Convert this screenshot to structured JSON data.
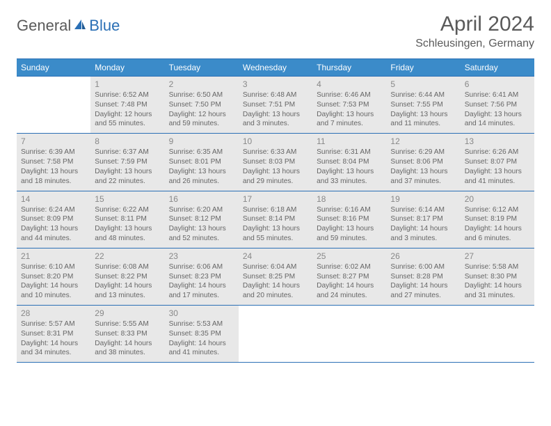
{
  "logo": {
    "textA": "General",
    "textB": "Blue"
  },
  "title": "April 2024",
  "location": "Schleusingen, Germany",
  "colors": {
    "header_bg": "#3b8bc9",
    "header_text": "#ffffff",
    "border": "#2a6fb5",
    "text": "#333333",
    "muted_bg": "#e8e8e8",
    "logo_gray": "#5a5a5a",
    "logo_blue": "#2a6fb5"
  },
  "day_headers": [
    "Sunday",
    "Monday",
    "Tuesday",
    "Wednesday",
    "Thursday",
    "Friday",
    "Saturday"
  ],
  "weeks": [
    [
      {
        "date": "",
        "sunrise": "",
        "sunset": "",
        "daylight": "",
        "other": false,
        "empty": true
      },
      {
        "date": "1",
        "sunrise": "6:52 AM",
        "sunset": "7:48 PM",
        "daylight": "12 hours and 55 minutes.",
        "other": true
      },
      {
        "date": "2",
        "sunrise": "6:50 AM",
        "sunset": "7:50 PM",
        "daylight": "12 hours and 59 minutes.",
        "other": true
      },
      {
        "date": "3",
        "sunrise": "6:48 AM",
        "sunset": "7:51 PM",
        "daylight": "13 hours and 3 minutes.",
        "other": true
      },
      {
        "date": "4",
        "sunrise": "6:46 AM",
        "sunset": "7:53 PM",
        "daylight": "13 hours and 7 minutes.",
        "other": true
      },
      {
        "date": "5",
        "sunrise": "6:44 AM",
        "sunset": "7:55 PM",
        "daylight": "13 hours and 11 minutes.",
        "other": true
      },
      {
        "date": "6",
        "sunrise": "6:41 AM",
        "sunset": "7:56 PM",
        "daylight": "13 hours and 14 minutes.",
        "other": true
      }
    ],
    [
      {
        "date": "7",
        "sunrise": "6:39 AM",
        "sunset": "7:58 PM",
        "daylight": "13 hours and 18 minutes.",
        "other": true
      },
      {
        "date": "8",
        "sunrise": "6:37 AM",
        "sunset": "7:59 PM",
        "daylight": "13 hours and 22 minutes.",
        "other": true
      },
      {
        "date": "9",
        "sunrise": "6:35 AM",
        "sunset": "8:01 PM",
        "daylight": "13 hours and 26 minutes.",
        "other": true
      },
      {
        "date": "10",
        "sunrise": "6:33 AM",
        "sunset": "8:03 PM",
        "daylight": "13 hours and 29 minutes.",
        "other": true
      },
      {
        "date": "11",
        "sunrise": "6:31 AM",
        "sunset": "8:04 PM",
        "daylight": "13 hours and 33 minutes.",
        "other": true
      },
      {
        "date": "12",
        "sunrise": "6:29 AM",
        "sunset": "8:06 PM",
        "daylight": "13 hours and 37 minutes.",
        "other": true
      },
      {
        "date": "13",
        "sunrise": "6:26 AM",
        "sunset": "8:07 PM",
        "daylight": "13 hours and 41 minutes.",
        "other": true
      }
    ],
    [
      {
        "date": "14",
        "sunrise": "6:24 AM",
        "sunset": "8:09 PM",
        "daylight": "13 hours and 44 minutes.",
        "other": true
      },
      {
        "date": "15",
        "sunrise": "6:22 AM",
        "sunset": "8:11 PM",
        "daylight": "13 hours and 48 minutes.",
        "other": true
      },
      {
        "date": "16",
        "sunrise": "6:20 AM",
        "sunset": "8:12 PM",
        "daylight": "13 hours and 52 minutes.",
        "other": true
      },
      {
        "date": "17",
        "sunrise": "6:18 AM",
        "sunset": "8:14 PM",
        "daylight": "13 hours and 55 minutes.",
        "other": true
      },
      {
        "date": "18",
        "sunrise": "6:16 AM",
        "sunset": "8:16 PM",
        "daylight": "13 hours and 59 minutes.",
        "other": true
      },
      {
        "date": "19",
        "sunrise": "6:14 AM",
        "sunset": "8:17 PM",
        "daylight": "14 hours and 3 minutes.",
        "other": true
      },
      {
        "date": "20",
        "sunrise": "6:12 AM",
        "sunset": "8:19 PM",
        "daylight": "14 hours and 6 minutes.",
        "other": true
      }
    ],
    [
      {
        "date": "21",
        "sunrise": "6:10 AM",
        "sunset": "8:20 PM",
        "daylight": "14 hours and 10 minutes.",
        "other": true
      },
      {
        "date": "22",
        "sunrise": "6:08 AM",
        "sunset": "8:22 PM",
        "daylight": "14 hours and 13 minutes.",
        "other": true
      },
      {
        "date": "23",
        "sunrise": "6:06 AM",
        "sunset": "8:23 PM",
        "daylight": "14 hours and 17 minutes.",
        "other": true
      },
      {
        "date": "24",
        "sunrise": "6:04 AM",
        "sunset": "8:25 PM",
        "daylight": "14 hours and 20 minutes.",
        "other": true
      },
      {
        "date": "25",
        "sunrise": "6:02 AM",
        "sunset": "8:27 PM",
        "daylight": "14 hours and 24 minutes.",
        "other": true
      },
      {
        "date": "26",
        "sunrise": "6:00 AM",
        "sunset": "8:28 PM",
        "daylight": "14 hours and 27 minutes.",
        "other": true
      },
      {
        "date": "27",
        "sunrise": "5:58 AM",
        "sunset": "8:30 PM",
        "daylight": "14 hours and 31 minutes.",
        "other": true
      }
    ],
    [
      {
        "date": "28",
        "sunrise": "5:57 AM",
        "sunset": "8:31 PM",
        "daylight": "14 hours and 34 minutes.",
        "other": true
      },
      {
        "date": "29",
        "sunrise": "5:55 AM",
        "sunset": "8:33 PM",
        "daylight": "14 hours and 38 minutes.",
        "other": true
      },
      {
        "date": "30",
        "sunrise": "5:53 AM",
        "sunset": "8:35 PM",
        "daylight": "14 hours and 41 minutes.",
        "other": true
      },
      {
        "date": "",
        "sunrise": "",
        "sunset": "",
        "daylight": "",
        "other": false,
        "empty": true
      },
      {
        "date": "",
        "sunrise": "",
        "sunset": "",
        "daylight": "",
        "other": false,
        "empty": true
      },
      {
        "date": "",
        "sunrise": "",
        "sunset": "",
        "daylight": "",
        "other": false,
        "empty": true
      },
      {
        "date": "",
        "sunrise": "",
        "sunset": "",
        "daylight": "",
        "other": false,
        "empty": true
      }
    ]
  ],
  "labels": {
    "sunrise_prefix": "Sunrise: ",
    "sunset_prefix": "Sunset: ",
    "daylight_prefix": "Daylight: "
  }
}
